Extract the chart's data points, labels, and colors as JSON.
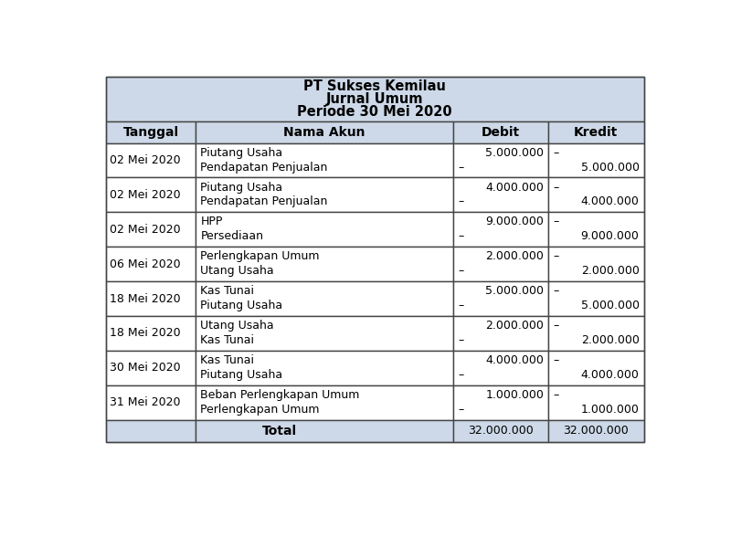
{
  "title_lines": [
    "PT Sukses Kemilau",
    "Jurnal Umum",
    "Periode 30 Mei 2020"
  ],
  "header_bg": "#cdd9e8",
  "border_color": "#444444",
  "text_color": "#000000",
  "bg_color": "#ffffff",
  "col_headers": [
    "Tanggal",
    "Nama Akun",
    "Debit",
    "Kredit"
  ],
  "rows": [
    {
      "tanggal": "02 Mei 2020",
      "akun": [
        "Piutang Usaha",
        "Pendapatan Penjualan"
      ],
      "debit": [
        "5.000.000",
        "–"
      ],
      "kredit": [
        "–",
        "5.000.000"
      ]
    },
    {
      "tanggal": "02 Mei 2020",
      "akun": [
        "Piutang Usaha",
        "Pendapatan Penjualan"
      ],
      "debit": [
        "4.000.000",
        "–"
      ],
      "kredit": [
        "–",
        "4.000.000"
      ]
    },
    {
      "tanggal": "02 Mei 2020",
      "akun": [
        "HPP",
        "Persediaan"
      ],
      "debit": [
        "9.000.000",
        "–"
      ],
      "kredit": [
        "–",
        "9.000.000"
      ]
    },
    {
      "tanggal": "06 Mei 2020",
      "akun": [
        "Perlengkapan Umum",
        "Utang Usaha"
      ],
      "debit": [
        "2.000.000",
        "–"
      ],
      "kredit": [
        "–",
        "2.000.000"
      ]
    },
    {
      "tanggal": "18 Mei 2020",
      "akun": [
        "Kas Tunai",
        "Piutang Usaha"
      ],
      "debit": [
        "5.000.000",
        "–"
      ],
      "kredit": [
        "–",
        "5.000.000"
      ]
    },
    {
      "tanggal": "18 Mei 2020",
      "akun": [
        "Utang Usaha",
        "Kas Tunai"
      ],
      "debit": [
        "2.000.000",
        "–"
      ],
      "kredit": [
        "–",
        "2.000.000"
      ]
    },
    {
      "tanggal": "30 Mei 2020",
      "akun": [
        "Kas Tunai",
        "Piutang Usaha"
      ],
      "debit": [
        "4.000.000",
        "–"
      ],
      "kredit": [
        "–",
        "4.000.000"
      ]
    },
    {
      "tanggal": "31 Mei 2020",
      "akun": [
        "Beban Perlengkapan Umum",
        "Perlengkapan Umum"
      ],
      "debit": [
        "1.000.000",
        "–"
      ],
      "kredit": [
        "–",
        "1.000.000"
      ]
    }
  ],
  "total_debit": "32.000.000",
  "total_kredit": "32.000.000",
  "figsize": [
    8.0,
    6.0
  ],
  "dpi": 100
}
